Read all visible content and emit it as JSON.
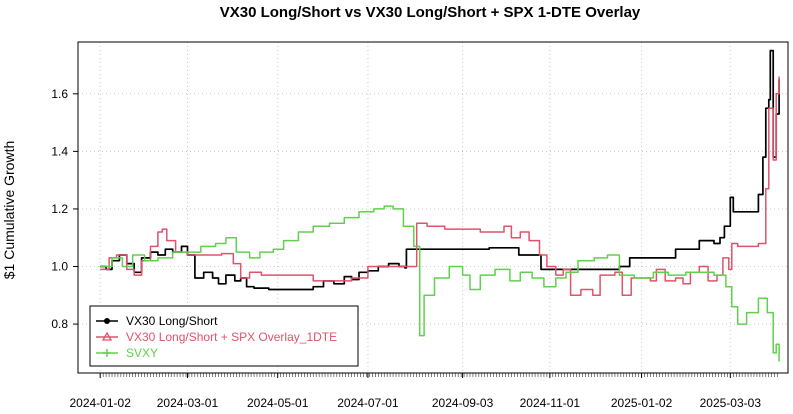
{
  "chart_data": {
    "type": "line",
    "title": "VX30 Long/Short vs VX30 Long/Short + SPX 1-DTE Overlay",
    "xlabel": "",
    "ylabel": "$1 Cumulative Growth",
    "ylim": [
      0.63,
      1.78
    ],
    "xlim": [
      "2023-12-18",
      "2025-04-11"
    ],
    "grid": true,
    "legend_position": "bottom-left",
    "x_ticks": [
      "2024-01-02",
      "2024-03-01",
      "2024-05-01",
      "2024-07-01",
      "2024-09-03",
      "2024-11-01",
      "2025-01-02",
      "2025-03-03"
    ],
    "y_ticks": [
      0.8,
      1.0,
      1.2,
      1.4,
      1.6
    ],
    "y_tick_labels": [
      "0.8",
      "1.0",
      "1.2",
      "1.4",
      "1.6"
    ],
    "series": [
      {
        "name": "VX30 Long/Short",
        "color": "#000000",
        "marker": "circle",
        "points": [
          [
            "2024-01-02",
            1.0
          ],
          [
            "2024-01-06",
            0.99
          ],
          [
            "2024-01-10",
            1.02
          ],
          [
            "2024-01-15",
            1.04
          ],
          [
            "2024-01-20",
            1.01
          ],
          [
            "2024-01-25",
            0.98
          ],
          [
            "2024-01-30",
            1.03
          ],
          [
            "2024-02-05",
            1.05
          ],
          [
            "2024-02-10",
            1.04
          ],
          [
            "2024-02-15",
            1.06
          ],
          [
            "2024-02-20",
            1.05
          ],
          [
            "2024-02-26",
            1.07
          ],
          [
            "2024-03-01",
            1.04
          ],
          [
            "2024-03-06",
            0.96
          ],
          [
            "2024-03-12",
            0.98
          ],
          [
            "2024-03-18",
            0.96
          ],
          [
            "2024-03-22",
            0.94
          ],
          [
            "2024-03-27",
            0.97
          ],
          [
            "2024-04-02",
            0.95
          ],
          [
            "2024-04-06",
            0.96
          ],
          [
            "2024-04-10",
            0.93
          ],
          [
            "2024-04-15",
            0.925
          ],
          [
            "2024-04-25",
            0.92
          ],
          [
            "2024-05-01",
            0.92
          ],
          [
            "2024-05-15",
            0.92
          ],
          [
            "2024-05-25",
            0.93
          ],
          [
            "2024-06-01",
            0.95
          ],
          [
            "2024-06-08",
            0.94
          ],
          [
            "2024-06-15",
            0.965
          ],
          [
            "2024-06-20",
            0.955
          ],
          [
            "2024-06-25",
            0.98
          ],
          [
            "2024-07-01",
            0.985
          ],
          [
            "2024-07-08",
            1.0
          ],
          [
            "2024-07-15",
            1.01
          ],
          [
            "2024-07-22",
            1.0
          ],
          [
            "2024-07-26",
            0.995
          ],
          [
            "2024-07-27",
            1.06
          ],
          [
            "2024-08-15",
            1.06
          ],
          [
            "2024-09-03",
            1.06
          ],
          [
            "2024-09-20",
            1.06
          ],
          [
            "2024-09-21",
            1.065
          ],
          [
            "2024-10-10",
            1.065
          ],
          [
            "2024-10-11",
            1.04
          ],
          [
            "2024-10-25",
            1.04
          ],
          [
            "2024-10-26",
            0.99
          ],
          [
            "2024-11-20",
            0.99
          ],
          [
            "2024-12-05",
            0.99
          ],
          [
            "2024-12-18",
            1.0
          ],
          [
            "2024-12-25",
            1.03
          ],
          [
            "2025-01-02",
            1.03
          ],
          [
            "2025-01-20",
            1.03
          ],
          [
            "2025-01-25",
            1.06
          ],
          [
            "2025-02-05",
            1.06
          ],
          [
            "2025-02-10",
            1.09
          ],
          [
            "2025-02-15",
            1.09
          ],
          [
            "2025-02-20",
            1.08
          ],
          [
            "2025-02-24",
            1.1
          ],
          [
            "2025-02-27",
            1.14
          ],
          [
            "2025-03-03",
            1.24
          ],
          [
            "2025-03-05",
            1.19
          ],
          [
            "2025-03-20",
            1.19
          ],
          [
            "2025-03-22",
            1.25
          ],
          [
            "2025-03-25",
            1.38
          ],
          [
            "2025-03-27",
            1.55
          ],
          [
            "2025-03-29",
            1.58
          ],
          [
            "2025-03-30",
            1.75
          ],
          [
            "2025-04-01",
            1.38
          ],
          [
            "2025-04-03",
            1.53
          ],
          [
            "2025-04-05",
            1.65
          ]
        ]
      },
      {
        "name": "VX30 Long/Short + SPX Overlay_1DTE",
        "color": "#DF536B",
        "marker": "triangle",
        "points": [
          [
            "2024-01-02",
            0.99
          ],
          [
            "2024-01-08",
            1.03
          ],
          [
            "2024-01-13",
            1.04
          ],
          [
            "2024-01-20",
            0.99
          ],
          [
            "2024-01-25",
            0.97
          ],
          [
            "2024-01-30",
            1.02
          ],
          [
            "2024-02-05",
            1.07
          ],
          [
            "2024-02-10",
            1.12
          ],
          [
            "2024-02-13",
            1.13
          ],
          [
            "2024-02-16",
            1.09
          ],
          [
            "2024-02-22",
            1.05
          ],
          [
            "2024-03-01",
            1.04
          ],
          [
            "2024-03-15",
            1.04
          ],
          [
            "2024-03-24",
            1.045
          ],
          [
            "2024-04-01",
            1.01
          ],
          [
            "2024-04-06",
            0.96
          ],
          [
            "2024-04-12",
            0.98
          ],
          [
            "2024-04-20",
            0.97
          ],
          [
            "2024-05-01",
            0.97
          ],
          [
            "2024-05-10",
            0.97
          ],
          [
            "2024-05-25",
            0.95
          ],
          [
            "2024-06-10",
            0.95
          ],
          [
            "2024-06-20",
            0.96
          ],
          [
            "2024-07-01",
            1.0
          ],
          [
            "2024-07-15",
            1.0
          ],
          [
            "2024-07-31",
            1.0
          ],
          [
            "2024-08-03",
            1.15
          ],
          [
            "2024-08-10",
            1.14
          ],
          [
            "2024-08-15",
            1.14
          ],
          [
            "2024-08-22",
            1.13
          ],
          [
            "2024-09-03",
            1.13
          ],
          [
            "2024-09-15",
            1.12
          ],
          [
            "2024-09-25",
            1.12
          ],
          [
            "2024-10-01",
            1.14
          ],
          [
            "2024-10-06",
            1.1
          ],
          [
            "2024-10-12",
            1.12
          ],
          [
            "2024-10-18",
            1.09
          ],
          [
            "2024-10-25",
            1.04
          ],
          [
            "2024-10-30",
            1.0
          ],
          [
            "2024-11-05",
            0.97
          ],
          [
            "2024-11-10",
            0.99
          ],
          [
            "2024-11-15",
            0.9
          ],
          [
            "2024-11-22",
            0.92
          ],
          [
            "2024-11-30",
            0.9
          ],
          [
            "2024-12-05",
            0.97
          ],
          [
            "2024-12-15",
            0.98
          ],
          [
            "2024-12-20",
            0.9
          ],
          [
            "2024-12-26",
            0.96
          ],
          [
            "2025-01-02",
            0.96
          ],
          [
            "2025-01-08",
            0.95
          ],
          [
            "2025-01-12",
            0.99
          ],
          [
            "2025-01-18",
            0.95
          ],
          [
            "2025-01-25",
            0.96
          ],
          [
            "2025-01-30",
            0.94
          ],
          [
            "2025-02-04",
            0.98
          ],
          [
            "2025-02-10",
            1.0
          ],
          [
            "2025-02-16",
            0.95
          ],
          [
            "2025-02-22",
            0.97
          ],
          [
            "2025-02-26",
            1.03
          ],
          [
            "2025-03-02",
            0.99
          ],
          [
            "2025-03-04",
            1.08
          ],
          [
            "2025-03-08",
            1.07
          ],
          [
            "2025-03-20",
            1.07
          ],
          [
            "2025-03-22",
            1.08
          ],
          [
            "2025-03-27",
            1.27
          ],
          [
            "2025-03-29",
            1.55
          ],
          [
            "2025-04-01",
            1.37
          ],
          [
            "2025-04-03",
            1.6
          ],
          [
            "2025-04-05",
            1.66
          ]
        ]
      },
      {
        "name": "SVXY",
        "color": "#61D04F",
        "marker": "plus",
        "points": [
          [
            "2024-01-02",
            1.0
          ],
          [
            "2024-01-10",
            1.03
          ],
          [
            "2024-01-17",
            1.0
          ],
          [
            "2024-01-24",
            1.04
          ],
          [
            "2024-02-01",
            1.02
          ],
          [
            "2024-02-10",
            1.03
          ],
          [
            "2024-02-20",
            1.05
          ],
          [
            "2024-03-01",
            1.05
          ],
          [
            "2024-03-10",
            1.07
          ],
          [
            "2024-03-20",
            1.08
          ],
          [
            "2024-03-27",
            1.1
          ],
          [
            "2024-04-03",
            1.05
          ],
          [
            "2024-04-12",
            1.03
          ],
          [
            "2024-04-19",
            1.05
          ],
          [
            "2024-04-28",
            1.06
          ],
          [
            "2024-05-05",
            1.09
          ],
          [
            "2024-05-15",
            1.12
          ],
          [
            "2024-05-25",
            1.14
          ],
          [
            "2024-06-05",
            1.15
          ],
          [
            "2024-06-15",
            1.17
          ],
          [
            "2024-06-25",
            1.19
          ],
          [
            "2024-07-05",
            1.2
          ],
          [
            "2024-07-12",
            1.21
          ],
          [
            "2024-07-18",
            1.2
          ],
          [
            "2024-07-25",
            1.14
          ],
          [
            "2024-08-01",
            1.07
          ],
          [
            "2024-08-05",
            0.76
          ],
          [
            "2024-08-08",
            0.9
          ],
          [
            "2024-08-15",
            0.96
          ],
          [
            "2024-08-25",
            1.0
          ],
          [
            "2024-09-03",
            0.97
          ],
          [
            "2024-09-08",
            0.92
          ],
          [
            "2024-09-15",
            0.97
          ],
          [
            "2024-09-25",
            0.99
          ],
          [
            "2024-10-05",
            0.95
          ],
          [
            "2024-10-12",
            0.98
          ],
          [
            "2024-10-20",
            0.96
          ],
          [
            "2024-10-28",
            0.93
          ],
          [
            "2024-11-05",
            0.96
          ],
          [
            "2024-11-12",
            0.98
          ],
          [
            "2024-11-20",
            1.02
          ],
          [
            "2024-12-01",
            1.03
          ],
          [
            "2024-12-10",
            1.04
          ],
          [
            "2024-12-18",
            0.97
          ],
          [
            "2024-12-28",
            0.96
          ],
          [
            "2025-01-10",
            0.98
          ],
          [
            "2025-01-20",
            0.97
          ],
          [
            "2025-02-01",
            0.98
          ],
          [
            "2025-02-10",
            0.98
          ],
          [
            "2025-02-20",
            0.97
          ],
          [
            "2025-02-28",
            0.93
          ],
          [
            "2025-03-04",
            0.86
          ],
          [
            "2025-03-08",
            0.8
          ],
          [
            "2025-03-14",
            0.84
          ],
          [
            "2025-03-22",
            0.89
          ],
          [
            "2025-03-28",
            0.84
          ],
          [
            "2025-04-01",
            0.7
          ],
          [
            "2025-04-03",
            0.73
          ],
          [
            "2025-04-05",
            0.67
          ]
        ]
      }
    ]
  }
}
